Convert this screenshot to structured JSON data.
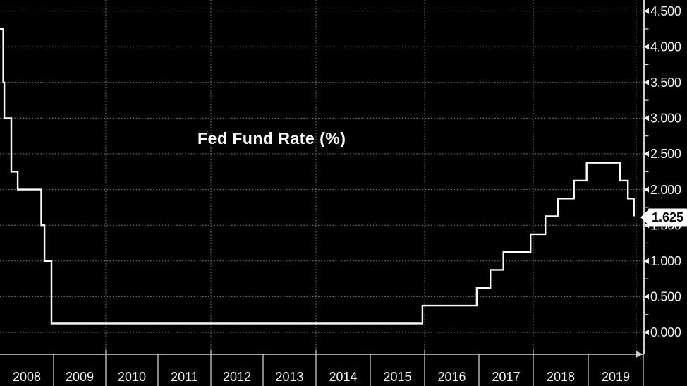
{
  "title": "Fed Fund Rate (%)",
  "last_price": {
    "label": "1.625",
    "value": 1.625
  },
  "y_axis": {
    "side": "right",
    "tick_labels": [
      "4.500",
      "4.000",
      "3.500",
      "3.000",
      "2.500",
      "2.000",
      "1.500",
      "1.000",
      "0.500",
      "0.000"
    ],
    "tick_values": [
      4.5,
      4.0,
      3.5,
      3.0,
      2.5,
      2.0,
      1.5,
      1.0,
      0.5,
      0.0
    ],
    "minor_tick_step": 0.25,
    "min": 0.0,
    "max": 4.5
  },
  "x_axis": {
    "year_labels": [
      "2008",
      "2009",
      "2010",
      "2011",
      "2012",
      "2013",
      "2014",
      "2015",
      "2016",
      "2017",
      "2018",
      "2019"
    ],
    "gridline_years": [
      2010,
      2012,
      2014,
      2016,
      2018
    ]
  },
  "chart_data": {
    "type": "line",
    "line_style": "step-after",
    "title": "Fed Fund Rate (%)",
    "ylabel": "Fed Fund Rate (%)",
    "ylim": [
      0,
      4.5
    ],
    "x_range_years": [
      2008.0,
      2020.0
    ],
    "grid": "dotted",
    "legend": "none",
    "y_axis_side": "right",
    "last_value": 1.625,
    "last_point_x": 2019.87,
    "points": [
      {
        "x": 2008.0,
        "y": 4.25
      },
      {
        "x": 2008.06,
        "y": 3.5
      },
      {
        "x": 2008.08,
        "y": 3.0
      },
      {
        "x": 2008.21,
        "y": 2.25
      },
      {
        "x": 2008.33,
        "y": 2.0
      },
      {
        "x": 2008.77,
        "y": 1.5
      },
      {
        "x": 2008.83,
        "y": 1.0
      },
      {
        "x": 2008.96,
        "y": 0.125
      },
      {
        "x": 2015.96,
        "y": 0.375
      },
      {
        "x": 2016.96,
        "y": 0.625
      },
      {
        "x": 2017.21,
        "y": 0.875
      },
      {
        "x": 2017.45,
        "y": 1.125
      },
      {
        "x": 2017.95,
        "y": 1.375
      },
      {
        "x": 2018.22,
        "y": 1.625
      },
      {
        "x": 2018.45,
        "y": 1.875
      },
      {
        "x": 2018.74,
        "y": 2.125
      },
      {
        "x": 2018.97,
        "y": 2.375
      },
      {
        "x": 2019.58,
        "y": 2.125
      },
      {
        "x": 2019.72,
        "y": 1.875
      },
      {
        "x": 2019.83,
        "y": 1.625
      }
    ]
  },
  "colors": {
    "background": "#000000",
    "line": "#ffffff",
    "grid": "#8a8a8a",
    "axis": "#cccccc",
    "label": "#f2f2f2",
    "tag_bg": "#ffffff",
    "tag_text": "#000000"
  }
}
